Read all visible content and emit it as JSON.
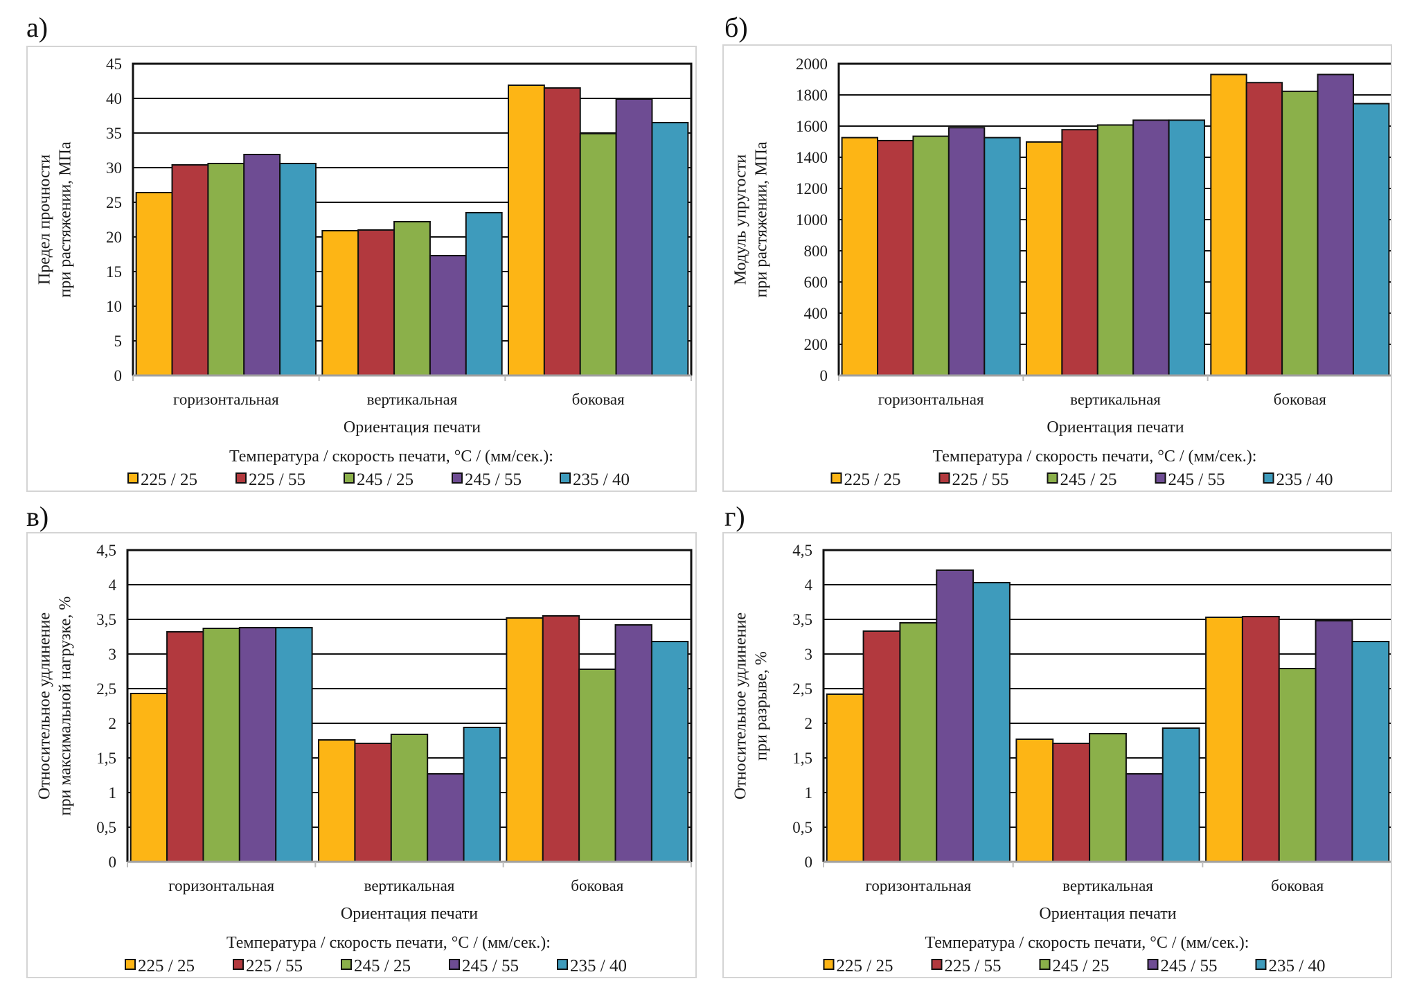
{
  "series_colors": [
    "#FDB515",
    "#B2393E",
    "#8BB04A",
    "#6E4C93",
    "#3E9BBC"
  ],
  "chart_data": [
    {
      "panel_label": "а)",
      "type": "bar",
      "title": "",
      "xlabel": "Ориентация печати",
      "ylabel_lines": [
        "Предел прочности",
        "при растяжении, МПа"
      ],
      "ylabel": "Предел прочности при растяжении, МПа",
      "categories": [
        "горизонтальная",
        "вертикальная",
        "боковая"
      ],
      "ylim": [
        0,
        45
      ],
      "yticks": [
        0,
        5,
        10,
        15,
        20,
        25,
        30,
        35,
        40,
        45
      ],
      "ytick_labels": [
        "0",
        "5",
        "10",
        "15",
        "20",
        "25",
        "30",
        "35",
        "40",
        "45"
      ],
      "grid": true,
      "legend_title": "Температура / скорость печати, °C / (мм/сек.):",
      "legend_position": "bottom",
      "series": [
        {
          "name": "225 / 25",
          "values": [
            26.4,
            20.9,
            41.9
          ]
        },
        {
          "name": "225 / 55",
          "values": [
            30.4,
            21.0,
            41.5
          ]
        },
        {
          "name": "245 / 25",
          "values": [
            30.6,
            22.2,
            34.9
          ]
        },
        {
          "name": "245 / 55",
          "values": [
            31.9,
            17.3,
            39.9
          ]
        },
        {
          "name": "235 / 40",
          "values": [
            30.6,
            23.5,
            36.5
          ]
        }
      ]
    },
    {
      "panel_label": "б)",
      "type": "bar",
      "title": "",
      "xlabel": "Ориентация печати",
      "ylabel_lines": [
        "Модуль упругости",
        "при растяжении, МПа"
      ],
      "ylabel": "Модуль упругости при растяжении, МПа",
      "categories": [
        "горизонтальная",
        "вертикальная",
        "боковая"
      ],
      "ylim": [
        0,
        2000
      ],
      "yticks": [
        0,
        200,
        400,
        600,
        800,
        1000,
        1200,
        1400,
        1600,
        1800,
        2000
      ],
      "ytick_labels": [
        "0",
        "200",
        "400",
        "600",
        "800",
        "1000",
        "1200",
        "1400",
        "1600",
        "1800",
        "2000"
      ],
      "grid": true,
      "legend_title": "Температура / скорость печати, °C / (мм/сек.):",
      "legend_position": "bottom",
      "series": [
        {
          "name": "225 / 25",
          "values": [
            1526,
            1498,
            1931
          ]
        },
        {
          "name": "225 / 55",
          "values": [
            1507,
            1577,
            1879
          ]
        },
        {
          "name": "245 / 25",
          "values": [
            1535,
            1607,
            1823
          ]
        },
        {
          "name": "245 / 55",
          "values": [
            1590,
            1638,
            1931
          ]
        },
        {
          "name": "235 / 40",
          "values": [
            1526,
            1638,
            1744
          ]
        }
      ]
    },
    {
      "panel_label": "в)",
      "type": "bar",
      "title": "",
      "xlabel": "Ориентация печати",
      "ylabel_lines": [
        "Относительное удлинение",
        "при максимальной  нагрузке, %"
      ],
      "ylabel": "Относительное удлинение при максимальной нагрузке, %",
      "categories": [
        "горизонтальная",
        "вертикальная",
        "боковая"
      ],
      "ylim": [
        0,
        4.5
      ],
      "yticks": [
        0,
        0.5,
        1,
        1.5,
        2,
        2.5,
        3,
        3.5,
        4,
        4.5
      ],
      "ytick_labels": [
        "0",
        "0,5",
        "1",
        "1,5",
        "2",
        "2,5",
        "3",
        "3,5",
        "4",
        "4,5"
      ],
      "grid": true,
      "legend_title": "Температура / скорость печати, °C / (мм/сек.):",
      "legend_position": "bottom",
      "series": [
        {
          "name": "225 / 25",
          "values": [
            2.43,
            1.76,
            3.52
          ]
        },
        {
          "name": "225 / 55",
          "values": [
            3.32,
            1.71,
            3.55
          ]
        },
        {
          "name": "245 / 25",
          "values": [
            3.37,
            1.84,
            2.78
          ]
        },
        {
          "name": "245 / 55",
          "values": [
            3.38,
            1.27,
            3.42
          ]
        },
        {
          "name": "235 / 40",
          "values": [
            3.38,
            1.94,
            3.18
          ]
        }
      ]
    },
    {
      "panel_label": "г)",
      "type": "bar",
      "title": "",
      "xlabel": "Ориентация печати",
      "ylabel_lines": [
        "Относительное удлинение",
        "при разрыве, %"
      ],
      "ylabel": "Относительное удлинение при разрыве, %",
      "categories": [
        "горизонтальная",
        "вертикальная",
        "боковая"
      ],
      "ylim": [
        0,
        4.5
      ],
      "yticks": [
        0,
        0.5,
        1,
        1.5,
        2,
        2.5,
        3,
        3.5,
        4,
        4.5
      ],
      "ytick_labels": [
        "0",
        "0,5",
        "1",
        "1,5",
        "2",
        "2,5",
        "3",
        "3,5",
        "4",
        "4,5"
      ],
      "grid": true,
      "legend_title": "Температура / скорость печати, °C / (мм/сек.):",
      "legend_position": "bottom",
      "series": [
        {
          "name": "225 / 25",
          "values": [
            2.42,
            1.77,
            3.53
          ]
        },
        {
          "name": "225 / 55",
          "values": [
            3.33,
            1.71,
            3.54
          ]
        },
        {
          "name": "245 / 25",
          "values": [
            3.45,
            1.85,
            2.79
          ]
        },
        {
          "name": "245 / 55",
          "values": [
            4.21,
            1.27,
            3.48
          ]
        },
        {
          "name": "235 / 40",
          "values": [
            4.03,
            1.93,
            3.18
          ]
        }
      ]
    }
  ]
}
